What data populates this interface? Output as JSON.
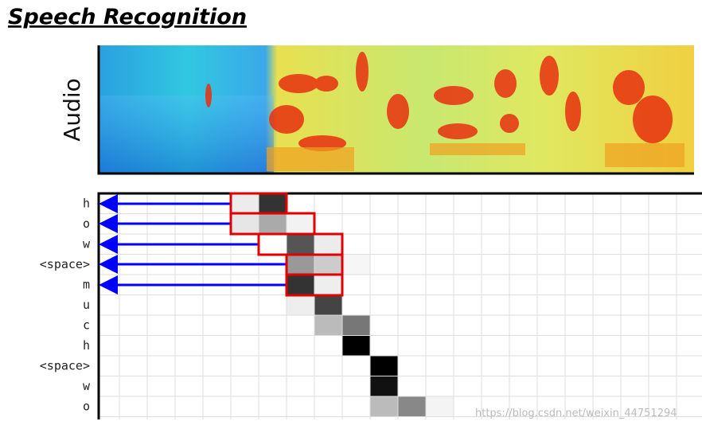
{
  "header": {
    "title": "Speech Recognition"
  },
  "audio_label": "Audio",
  "rows": [
    "h",
    "o",
    "w",
    "<space>",
    "m",
    "u",
    "c",
    "h",
    "<space>",
    "w",
    "o"
  ],
  "watermark": "https://blog.csdn.net/weixin_44751294"
}
